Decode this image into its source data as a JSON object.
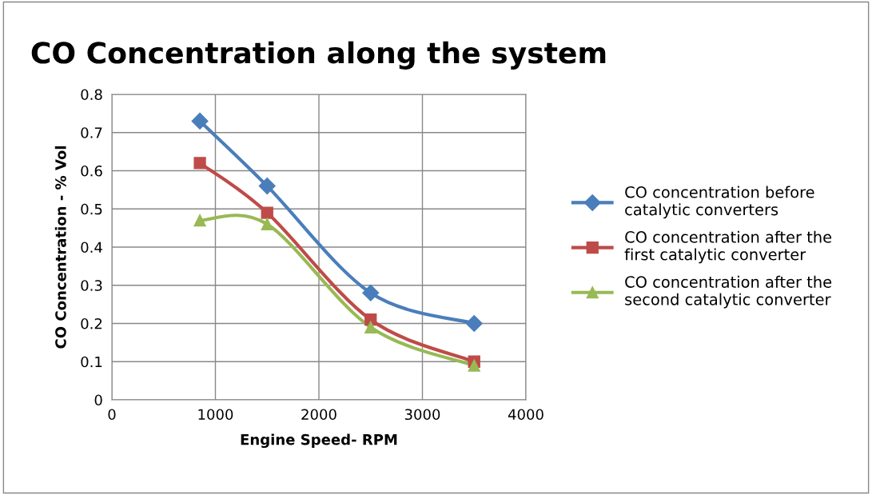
{
  "chart_data": {
    "type": "line",
    "title": "CO Concentration along the system",
    "xlabel": "Engine Speed- RPM",
    "ylabel": "CO Concentration - % Vol",
    "x": [
      850,
      1500,
      2500,
      3500
    ],
    "series": [
      {
        "name": "CO concentration before\ncatalytic converters",
        "color": "#4a7ebb",
        "marker": "diamond",
        "values": [
          0.73,
          0.56,
          0.28,
          0.2
        ]
      },
      {
        "name": "CO concentration after the\nfirst catalytic converter",
        "color": "#be4b48",
        "marker": "square",
        "values": [
          0.62,
          0.49,
          0.21,
          0.1
        ]
      },
      {
        "name": "CO concentration after the\nsecond catalytic converter",
        "color": "#98b954",
        "marker": "triangle",
        "values": [
          0.47,
          0.46,
          0.19,
          0.09
        ]
      }
    ],
    "xlim": [
      0,
      4000
    ],
    "xticks": [
      0,
      1000,
      2000,
      3000,
      4000
    ],
    "ylim": [
      0,
      0.8
    ],
    "yticks": [
      0,
      0.1,
      0.2,
      0.3,
      0.4,
      0.5,
      0.6,
      0.7,
      0.8
    ],
    "grid": true,
    "legend": "right",
    "line_style": "solid"
  }
}
